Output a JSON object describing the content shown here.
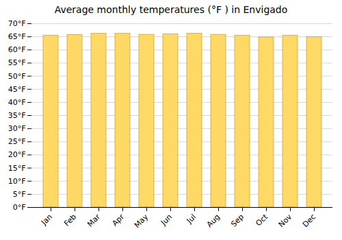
{
  "chart_data": {
    "type": "bar",
    "title": "Average monthly temperatures (°F ) in Envigado",
    "categories": [
      "Jan",
      "Feb",
      "Mar",
      "Apr",
      "May",
      "Jun",
      "Jul",
      "Aug",
      "Sep",
      "Oct",
      "Nov",
      "Dec"
    ],
    "values": [
      65.5,
      65.7,
      66.2,
      66.2,
      65.8,
      66.0,
      66.2,
      65.8,
      65.5,
      64.8,
      65.5,
      64.9
    ],
    "color": "#FFD966",
    "ylim": [
      0,
      70
    ],
    "yticks": [
      {
        "value": 0,
        "label": "0°F"
      },
      {
        "value": 5,
        "label": "5°F"
      },
      {
        "value": 10,
        "label": "10°F"
      },
      {
        "value": 15,
        "label": "15°F"
      },
      {
        "value": 20,
        "label": "20°F"
      },
      {
        "value": 25,
        "label": "25°F"
      },
      {
        "value": 30,
        "label": "30°F"
      },
      {
        "value": 35,
        "label": "35°F"
      },
      {
        "value": 40,
        "label": "40°F"
      },
      {
        "value": 45,
        "label": "45°F"
      },
      {
        "value": 50,
        "label": "50°F"
      },
      {
        "value": 55,
        "label": "55°F"
      },
      {
        "value": 60,
        "label": "60°F"
      },
      {
        "value": 65,
        "label": "65°F"
      },
      {
        "value": 70,
        "label": "70°F"
      }
    ],
    "grid": true
  }
}
